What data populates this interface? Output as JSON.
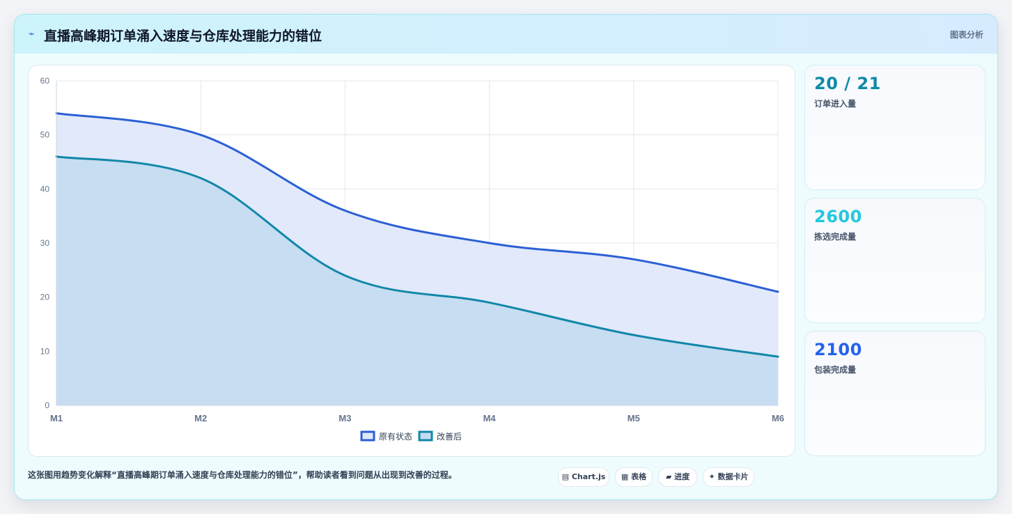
{
  "header": {
    "icon": "lightning-icon",
    "icon_glyph": "⌁",
    "title": "直播高峰期订单涌入速度与仓库处理能力的错位",
    "right_label": "图表分析"
  },
  "chart_data": {
    "type": "area",
    "x": [
      "M1",
      "M2",
      "M3",
      "M4",
      "M5",
      "M6"
    ],
    "ylim": [
      0,
      60
    ],
    "yticks": [
      "0",
      "10",
      "20",
      "30",
      "40",
      "50",
      "60"
    ],
    "grid": true,
    "legend_position": "bottom",
    "series": [
      {
        "name": "原有状态",
        "values": [
          54,
          50,
          36,
          30,
          27,
          21
        ],
        "color": "#2b5fd4",
        "fill": "#dfe8fb"
      },
      {
        "name": "改善后",
        "values": [
          46,
          42,
          24,
          19,
          13,
          9
        ],
        "color": "#1187a8",
        "fill": "#c4dcf1"
      }
    ]
  },
  "stats": [
    {
      "value": "20 / 21",
      "label": "订单进入量",
      "color": "#0e8aa6"
    },
    {
      "value": "2600",
      "label": "拣选完成量",
      "color": "#22c8de"
    },
    {
      "value": "2100",
      "label": "包装完成量",
      "color": "#2563eb"
    }
  ],
  "caption": "这张图用趋势变化解释“直播高峰期订单涌入速度与仓库处理能力的错位”，帮助读者看到问题从出现到改善的过程。",
  "tags": [
    {
      "icon": "chart-icon",
      "label": "▤ Chart.js"
    },
    {
      "icon": "table-icon",
      "label": "▦ 表格"
    },
    {
      "icon": "progress-icon",
      "label": "▰ 进度"
    },
    {
      "icon": "sparkle-icon",
      "label": "✦ 数据卡片"
    }
  ]
}
